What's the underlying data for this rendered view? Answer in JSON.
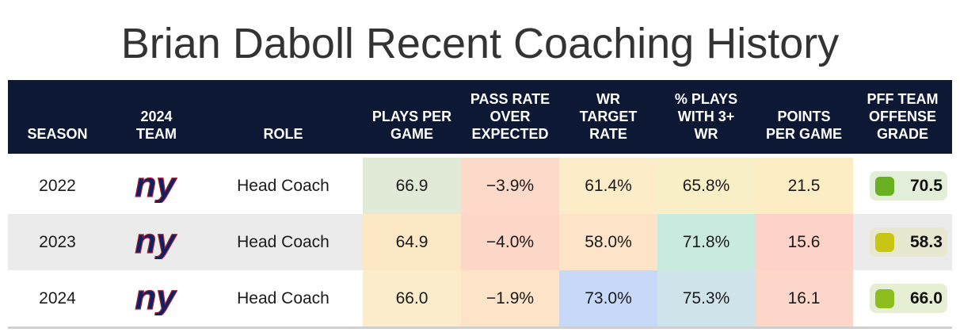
{
  "title": "Brian Daboll Recent Coaching History",
  "headers": {
    "season": "SEASON",
    "team": "2024\nTEAM",
    "role": "ROLE",
    "plays": "PLAYS PER\nGAME",
    "pass_rate": "PASS RATE\nOVER\nEXPECTED",
    "wr_target": "WR\nTARGET\nRATE",
    "pct_3wr": "% PLAYS\nWITH 3+\nWR",
    "points": "POINTS\nPER GAME",
    "pff": "PFF TEAM\nOFFENSE\nGRADE"
  },
  "rows": [
    {
      "season": "2022",
      "team_logo": "ny",
      "role": "Head Coach",
      "plays": "66.9",
      "pass_rate": "−3.9%",
      "wr_target": "61.4%",
      "pct_3wr": "65.8%",
      "points": "21.5",
      "grade": "70.5",
      "colors": {
        "plays": "#e1ead7",
        "pass_rate": "#fdd9c9",
        "wr_target": "#fcecc8",
        "pct_3wr": "#f9efc7",
        "points": "#fdedc5",
        "grade_pill": "#e2eed7",
        "grade_dot": "#6ab023"
      }
    },
    {
      "season": "2023",
      "team_logo": "ny",
      "role": "Head Coach",
      "plays": "64.9",
      "pass_rate": "−4.0%",
      "wr_target": "58.0%",
      "pct_3wr": "71.8%",
      "points": "15.6",
      "grade": "58.3",
      "colors": {
        "plays": "#fde8c6",
        "pass_rate": "#fdd7c8",
        "wr_target": "#fde3c7",
        "pct_3wr": "#c9ebdf",
        "points": "#fdd2c9",
        "grade_pill": "#e8e8d0",
        "grade_dot": "#c9c613"
      }
    },
    {
      "season": "2024",
      "team_logo": "ny",
      "role": "Head Coach",
      "plays": "66.0",
      "pass_rate": "−1.9%",
      "wr_target": "73.0%",
      "pct_3wr": "75.3%",
      "points": "16.1",
      "grade": "66.0",
      "colors": {
        "plays": "#fbedcc",
        "pass_rate": "#fde3c8",
        "wr_target": "#c7d8f9",
        "pct_3wr": "#cfe4ea",
        "points": "#fdd6ca",
        "grade_pill": "#e6efd4",
        "grade_dot": "#8cbe1e"
      }
    }
  ],
  "row_backgrounds": [
    "#ffffff",
    "#ebebeb",
    "#ffffff"
  ]
}
